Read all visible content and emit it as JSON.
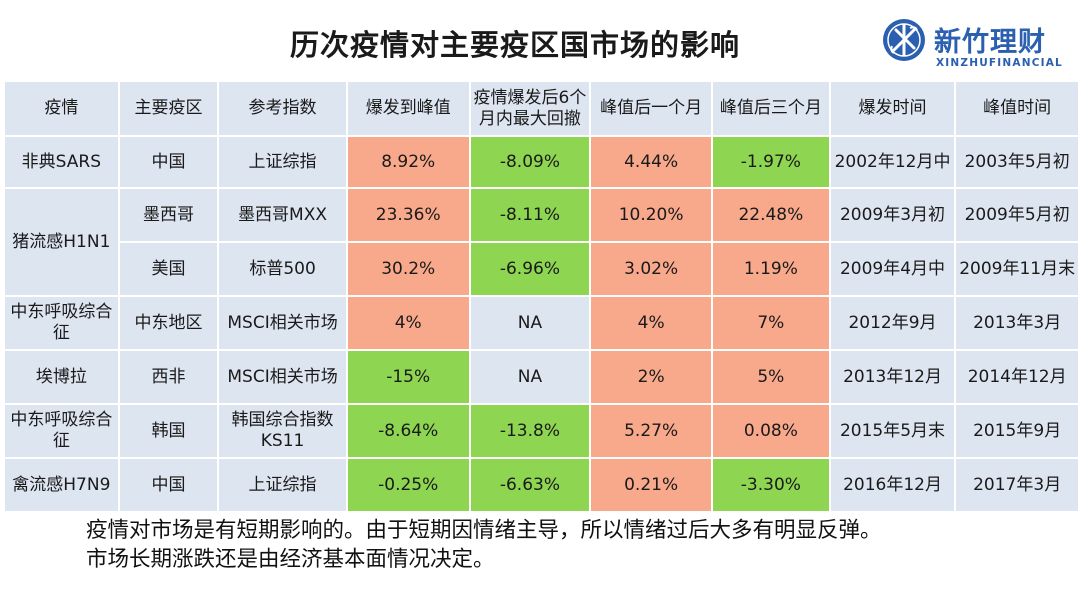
{
  "title": "历次疫情对主要疫区国市场的影响",
  "logo": {
    "brand": "新竹理财",
    "brand_en": "XINZHUFINANCIAL"
  },
  "columns": [
    "疫情",
    "主要疫区",
    "参考指数",
    "爆发到峰值",
    "疫情爆发后6个月内最大回撤",
    "峰值后一个月",
    "峰值后三个月",
    "爆发时间",
    "峰值时间"
  ],
  "rows": [
    {
      "epidemic": "非典SARS",
      "region": "中国",
      "index": "上证综指",
      "rise": "8.92%",
      "drawdown": "-8.09%",
      "m1": "4.44%",
      "m3": "-1.97%",
      "start": "2002年12月中",
      "peak": "2003年5月初"
    },
    {
      "epidemic": "猪流感H1N1",
      "region": "墨西哥",
      "index": "墨西哥MXX",
      "rise": "23.36%",
      "drawdown": "-8.11%",
      "m1": "10.20%",
      "m3": "22.48%",
      "start": "2009年3月初",
      "peak": "2009年5月初"
    },
    {
      "epidemic": "",
      "region": "美国",
      "index": "标普500",
      "rise": "30.2%",
      "drawdown": "-6.96%",
      "m1": "3.02%",
      "m3": "1.19%",
      "start": "2009年4月中",
      "peak": "2009年11月末"
    },
    {
      "epidemic": "中东呼吸综合征",
      "region": "中东地区",
      "index": "MSCI相关市场",
      "rise": "4%",
      "drawdown": "NA",
      "m1": "4%",
      "m3": "7%",
      "start": "2012年9月",
      "peak": "2013年3月"
    },
    {
      "epidemic": "埃博拉",
      "region": "西非",
      "index": "MSCI相关市场",
      "rise": "-15%",
      "drawdown": "NA",
      "m1": "2%",
      "m3": "5%",
      "start": "2013年12月",
      "peak": "2014年12月"
    },
    {
      "epidemic": "中东呼吸综合征",
      "region": "韩国",
      "index": "韩国综合指数KS11",
      "rise": "-8.64%",
      "drawdown": "-13.8%",
      "m1": "5.27%",
      "m3": "0.08%",
      "start": "2015年5月末",
      "peak": "2015年9月"
    },
    {
      "epidemic": "禽流感H7N9",
      "region": "中国",
      "index": "上证综指",
      "rise": "-0.25%",
      "drawdown": "-6.63%",
      "m1": "0.21%",
      "m3": "-3.30%",
      "start": "2016年12月",
      "peak": "2017年3月"
    }
  ],
  "colors": {
    "positive": "#f8a88b",
    "negative": "#8ed551",
    "neutral": "#dde5f1"
  },
  "note": {
    "line1": "疫情对市场是有短期影响的。由于短期因情绪主导，所以情绪过后大多有明显反弹。",
    "line2": "市场长期涨跌还是由经济基本面情况决定。"
  }
}
